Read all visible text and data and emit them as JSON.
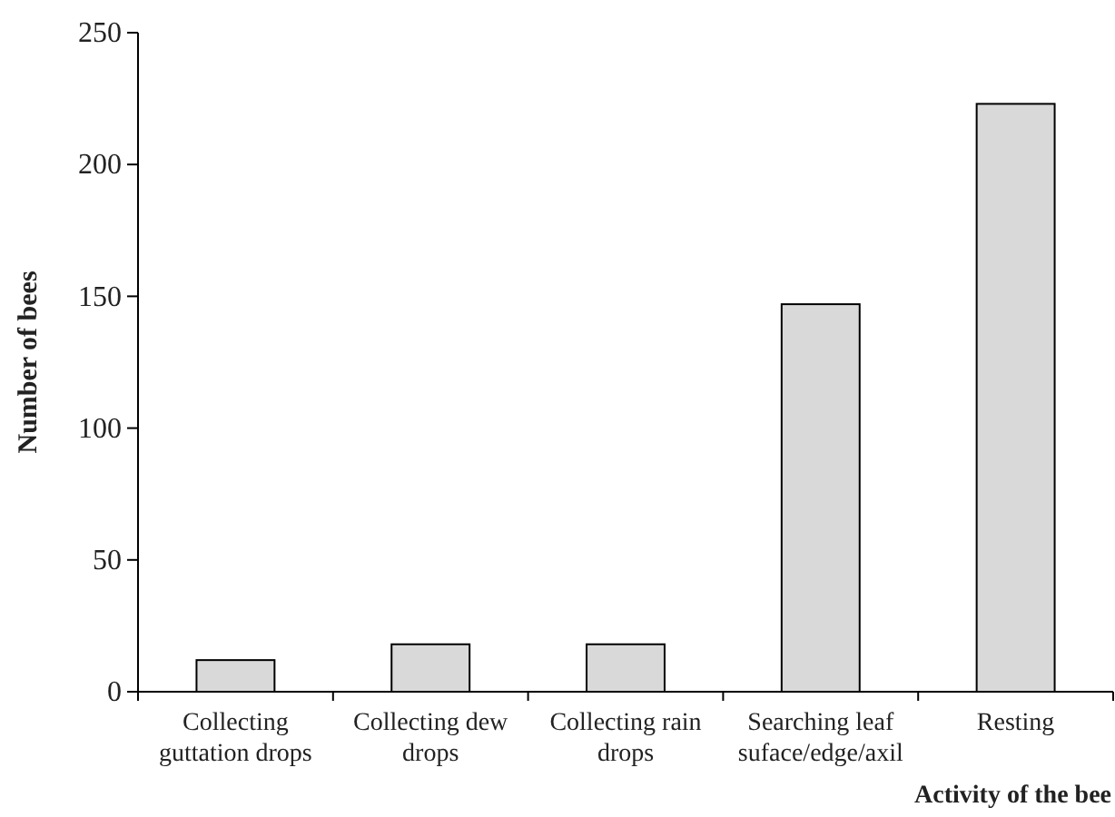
{
  "chart_data": {
    "type": "bar",
    "categories": [
      "Collecting guttation drops",
      "Collecting dew drops",
      "Collecting rain drops",
      "Searching leaf suface/edge/axil",
      "Resting"
    ],
    "values": [
      12,
      18,
      18,
      147,
      223
    ],
    "color": "#d9d9d9",
    "xlabel": "Activity of the bee",
    "ylabel": "Number of bees",
    "ylim": [
      0,
      250
    ],
    "yticks": [
      0,
      50,
      100,
      150,
      200,
      250
    ]
  }
}
